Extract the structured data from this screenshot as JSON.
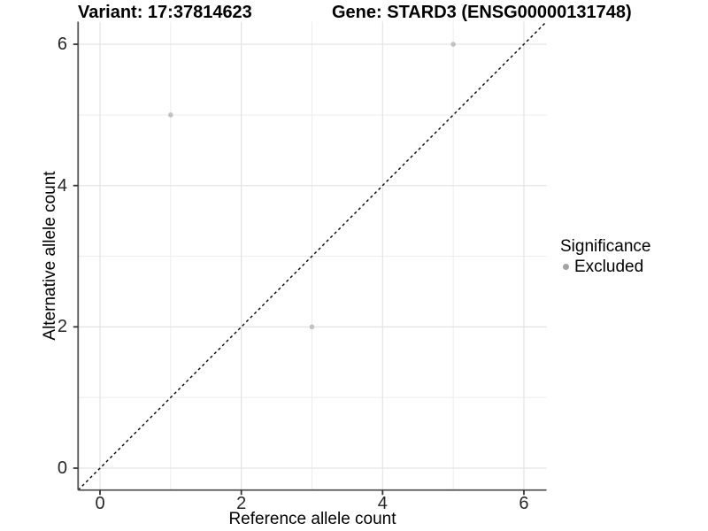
{
  "window": {
    "title_left": "Variant: 17:37814623",
    "title_right": "Gene: STARD3 (ENSG00000131748)"
  },
  "chart_data": {
    "type": "scatter",
    "title": "Variant: 17:37814623 | Gene: STARD3 (ENSG00000131748)",
    "xlabel": "Reference allele count",
    "ylabel": "Alternative allele count",
    "xlim": [
      -0.31,
      6.32
    ],
    "ylim": [
      -0.31,
      6.32
    ],
    "x_ticks": [
      0,
      2,
      4,
      6
    ],
    "y_ticks": [
      0,
      2,
      4,
      6
    ],
    "x_minor": [
      1,
      3,
      5
    ],
    "y_minor": [
      1,
      3,
      5
    ],
    "grid": "on",
    "identity_line": {
      "style": "dashed",
      "color": "#000000",
      "equation": "y = x"
    },
    "series": [
      {
        "name": "Excluded",
        "color": "#c2c2c2",
        "points": [
          {
            "x": 1,
            "y": 5
          },
          {
            "x": 3,
            "y": 2
          },
          {
            "x": 5,
            "y": 6
          }
        ]
      }
    ],
    "legend": {
      "title": "Significance",
      "position": "right",
      "entries": [
        {
          "label": "Excluded",
          "color": "#a3a3a3"
        }
      ]
    },
    "colors": {
      "panel_background": "#ffffff",
      "grid_major": "#e3e3e3",
      "grid_minor": "#ededed",
      "axis_line": "#555555",
      "tick_mark": "#333333",
      "tick_text": "#262626",
      "point": "#c2c2c2"
    }
  }
}
